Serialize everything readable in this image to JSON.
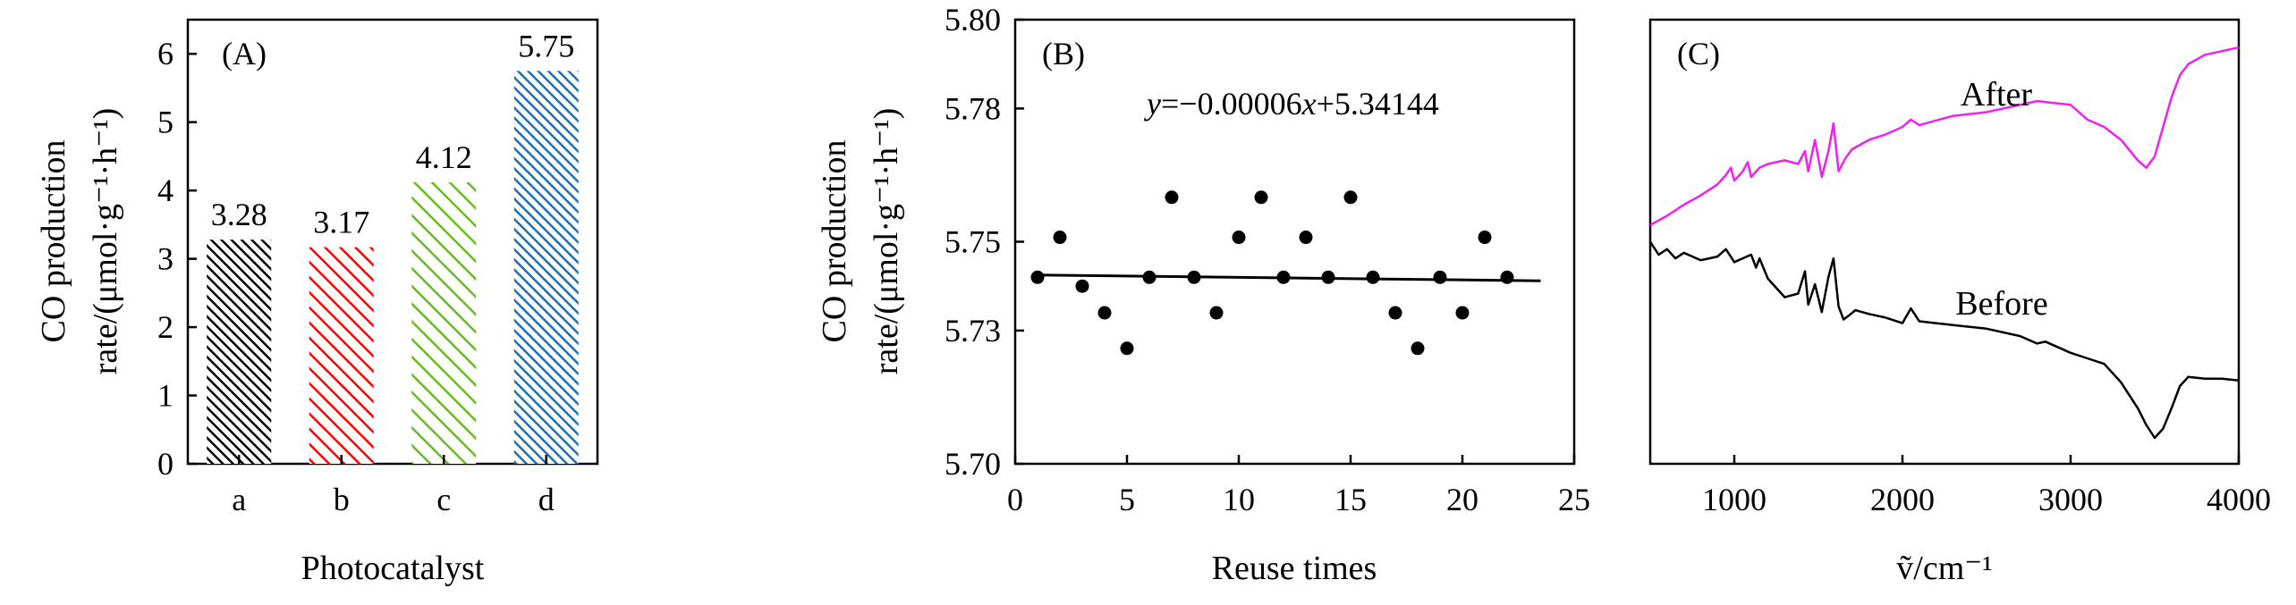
{
  "chart_data": [
    {
      "panel": "(A)",
      "type": "bar",
      "xlabel": "Photocatalyst",
      "ylabel_line1": "CO production",
      "ylabel_line2": "rate/(μmol·g⁻¹·h⁻¹)",
      "categories": [
        "a",
        "b",
        "c",
        "d"
      ],
      "values": [
        3.28,
        3.17,
        4.12,
        5.75
      ],
      "value_labels": [
        "3.28",
        "3.17",
        "4.12",
        "5.75"
      ],
      "ylim": [
        0,
        6.5
      ],
      "yticks": [
        0,
        1,
        2,
        3,
        4,
        5,
        6
      ],
      "colors": [
        "#000000",
        "#ff0000",
        "#66bb22",
        "#1f6fb4"
      ],
      "fill": "diagonal-hatch"
    },
    {
      "panel": "(B)",
      "type": "scatter",
      "xlabel": "Reuse times",
      "ylabel_line1": "CO production",
      "ylabel_line2": "rate/(μmol·g⁻¹·h⁻¹)",
      "equation": {
        "y": "y",
        "mid": "=−0.00006",
        "x": "x",
        "tail": "+5.34144"
      },
      "x": [
        1,
        2,
        3,
        4,
        5,
        6,
        7,
        8,
        9,
        10,
        11,
        12,
        13,
        14,
        15,
        16,
        17,
        18,
        19,
        20,
        21,
        22
      ],
      "y": [
        5.742,
        5.751,
        5.74,
        5.734,
        5.726,
        5.742,
        5.76,
        5.742,
        5.734,
        5.751,
        5.76,
        5.742,
        5.751,
        5.742,
        5.76,
        5.742,
        5.734,
        5.726,
        5.742,
        5.734,
        5.751,
        5.742
      ],
      "fit_line": {
        "x": [
          1,
          23.5
        ],
        "y": [
          5.7425,
          5.7412
        ]
      },
      "xlim": [
        0,
        25
      ],
      "ylim": [
        5.7,
        5.8
      ],
      "xticks": [
        0,
        5,
        10,
        15,
        20,
        25
      ],
      "yticks": [
        5.7,
        5.73,
        5.75,
        5.78,
        5.8
      ],
      "ytick_labels": [
        "5.70",
        "5.73",
        "5.75",
        "5.78",
        "5.80"
      ]
    },
    {
      "panel": "(C)",
      "type": "line",
      "xlabel": "ṽ/cm⁻¹",
      "xlim": [
        500,
        4000
      ],
      "xticks": [
        1000,
        2000,
        3000,
        4000
      ],
      "series": [
        {
          "name": "After",
          "color": "#ee22ee",
          "x": [
            500,
            600,
            700,
            800,
            900,
            950,
            980,
            1000,
            1050,
            1080,
            1100,
            1150,
            1200,
            1300,
            1380,
            1420,
            1440,
            1480,
            1520,
            1560,
            1590,
            1620,
            1660,
            1700,
            1800,
            1900,
            2000,
            2050,
            2100,
            2300,
            2500,
            2700,
            2800,
            2900,
            3000,
            3100,
            3200,
            3300,
            3400,
            3450,
            3500,
            3550,
            3600,
            3650,
            3700,
            3800,
            3900,
            4000
          ],
          "y": [
            0.09,
            0.14,
            0.2,
            0.25,
            0.31,
            0.36,
            0.4,
            0.33,
            0.38,
            0.43,
            0.35,
            0.4,
            0.42,
            0.44,
            0.42,
            0.49,
            0.38,
            0.55,
            0.35,
            0.49,
            0.64,
            0.38,
            0.45,
            0.5,
            0.55,
            0.58,
            0.62,
            0.66,
            0.63,
            0.68,
            0.7,
            0.74,
            0.76,
            0.75,
            0.74,
            0.66,
            0.62,
            0.55,
            0.44,
            0.4,
            0.46,
            0.62,
            0.78,
            0.9,
            0.96,
            1.01,
            1.03,
            1.05
          ]
        },
        {
          "name": "Before",
          "color": "#000000",
          "x": [
            500,
            550,
            600,
            650,
            700,
            800,
            900,
            950,
            1000,
            1050,
            1100,
            1130,
            1150,
            1200,
            1300,
            1380,
            1420,
            1440,
            1480,
            1520,
            1560,
            1590,
            1620,
            1650,
            1680,
            1720,
            1800,
            1900,
            2000,
            2050,
            2100,
            2300,
            2500,
            2700,
            2800,
            2850,
            3000,
            3100,
            3200,
            3300,
            3350,
            3400,
            3450,
            3500,
            3550,
            3600,
            3650,
            3700,
            3800,
            3900,
            4000
          ],
          "y": [
            0.0,
            -0.07,
            -0.04,
            -0.09,
            -0.06,
            -0.1,
            -0.08,
            -0.04,
            -0.11,
            -0.09,
            -0.07,
            -0.14,
            -0.09,
            -0.2,
            -0.3,
            -0.28,
            -0.16,
            -0.34,
            -0.23,
            -0.38,
            -0.19,
            -0.09,
            -0.35,
            -0.42,
            -0.4,
            -0.37,
            -0.39,
            -0.41,
            -0.44,
            -0.36,
            -0.43,
            -0.45,
            -0.47,
            -0.51,
            -0.55,
            -0.54,
            -0.6,
            -0.63,
            -0.66,
            -0.76,
            -0.83,
            -0.9,
            -0.99,
            -1.06,
            -1.01,
            -0.9,
            -0.78,
            -0.73,
            -0.74,
            -0.74,
            -0.75
          ]
        }
      ],
      "ylim": [
        -1.2,
        1.2
      ]
    }
  ]
}
